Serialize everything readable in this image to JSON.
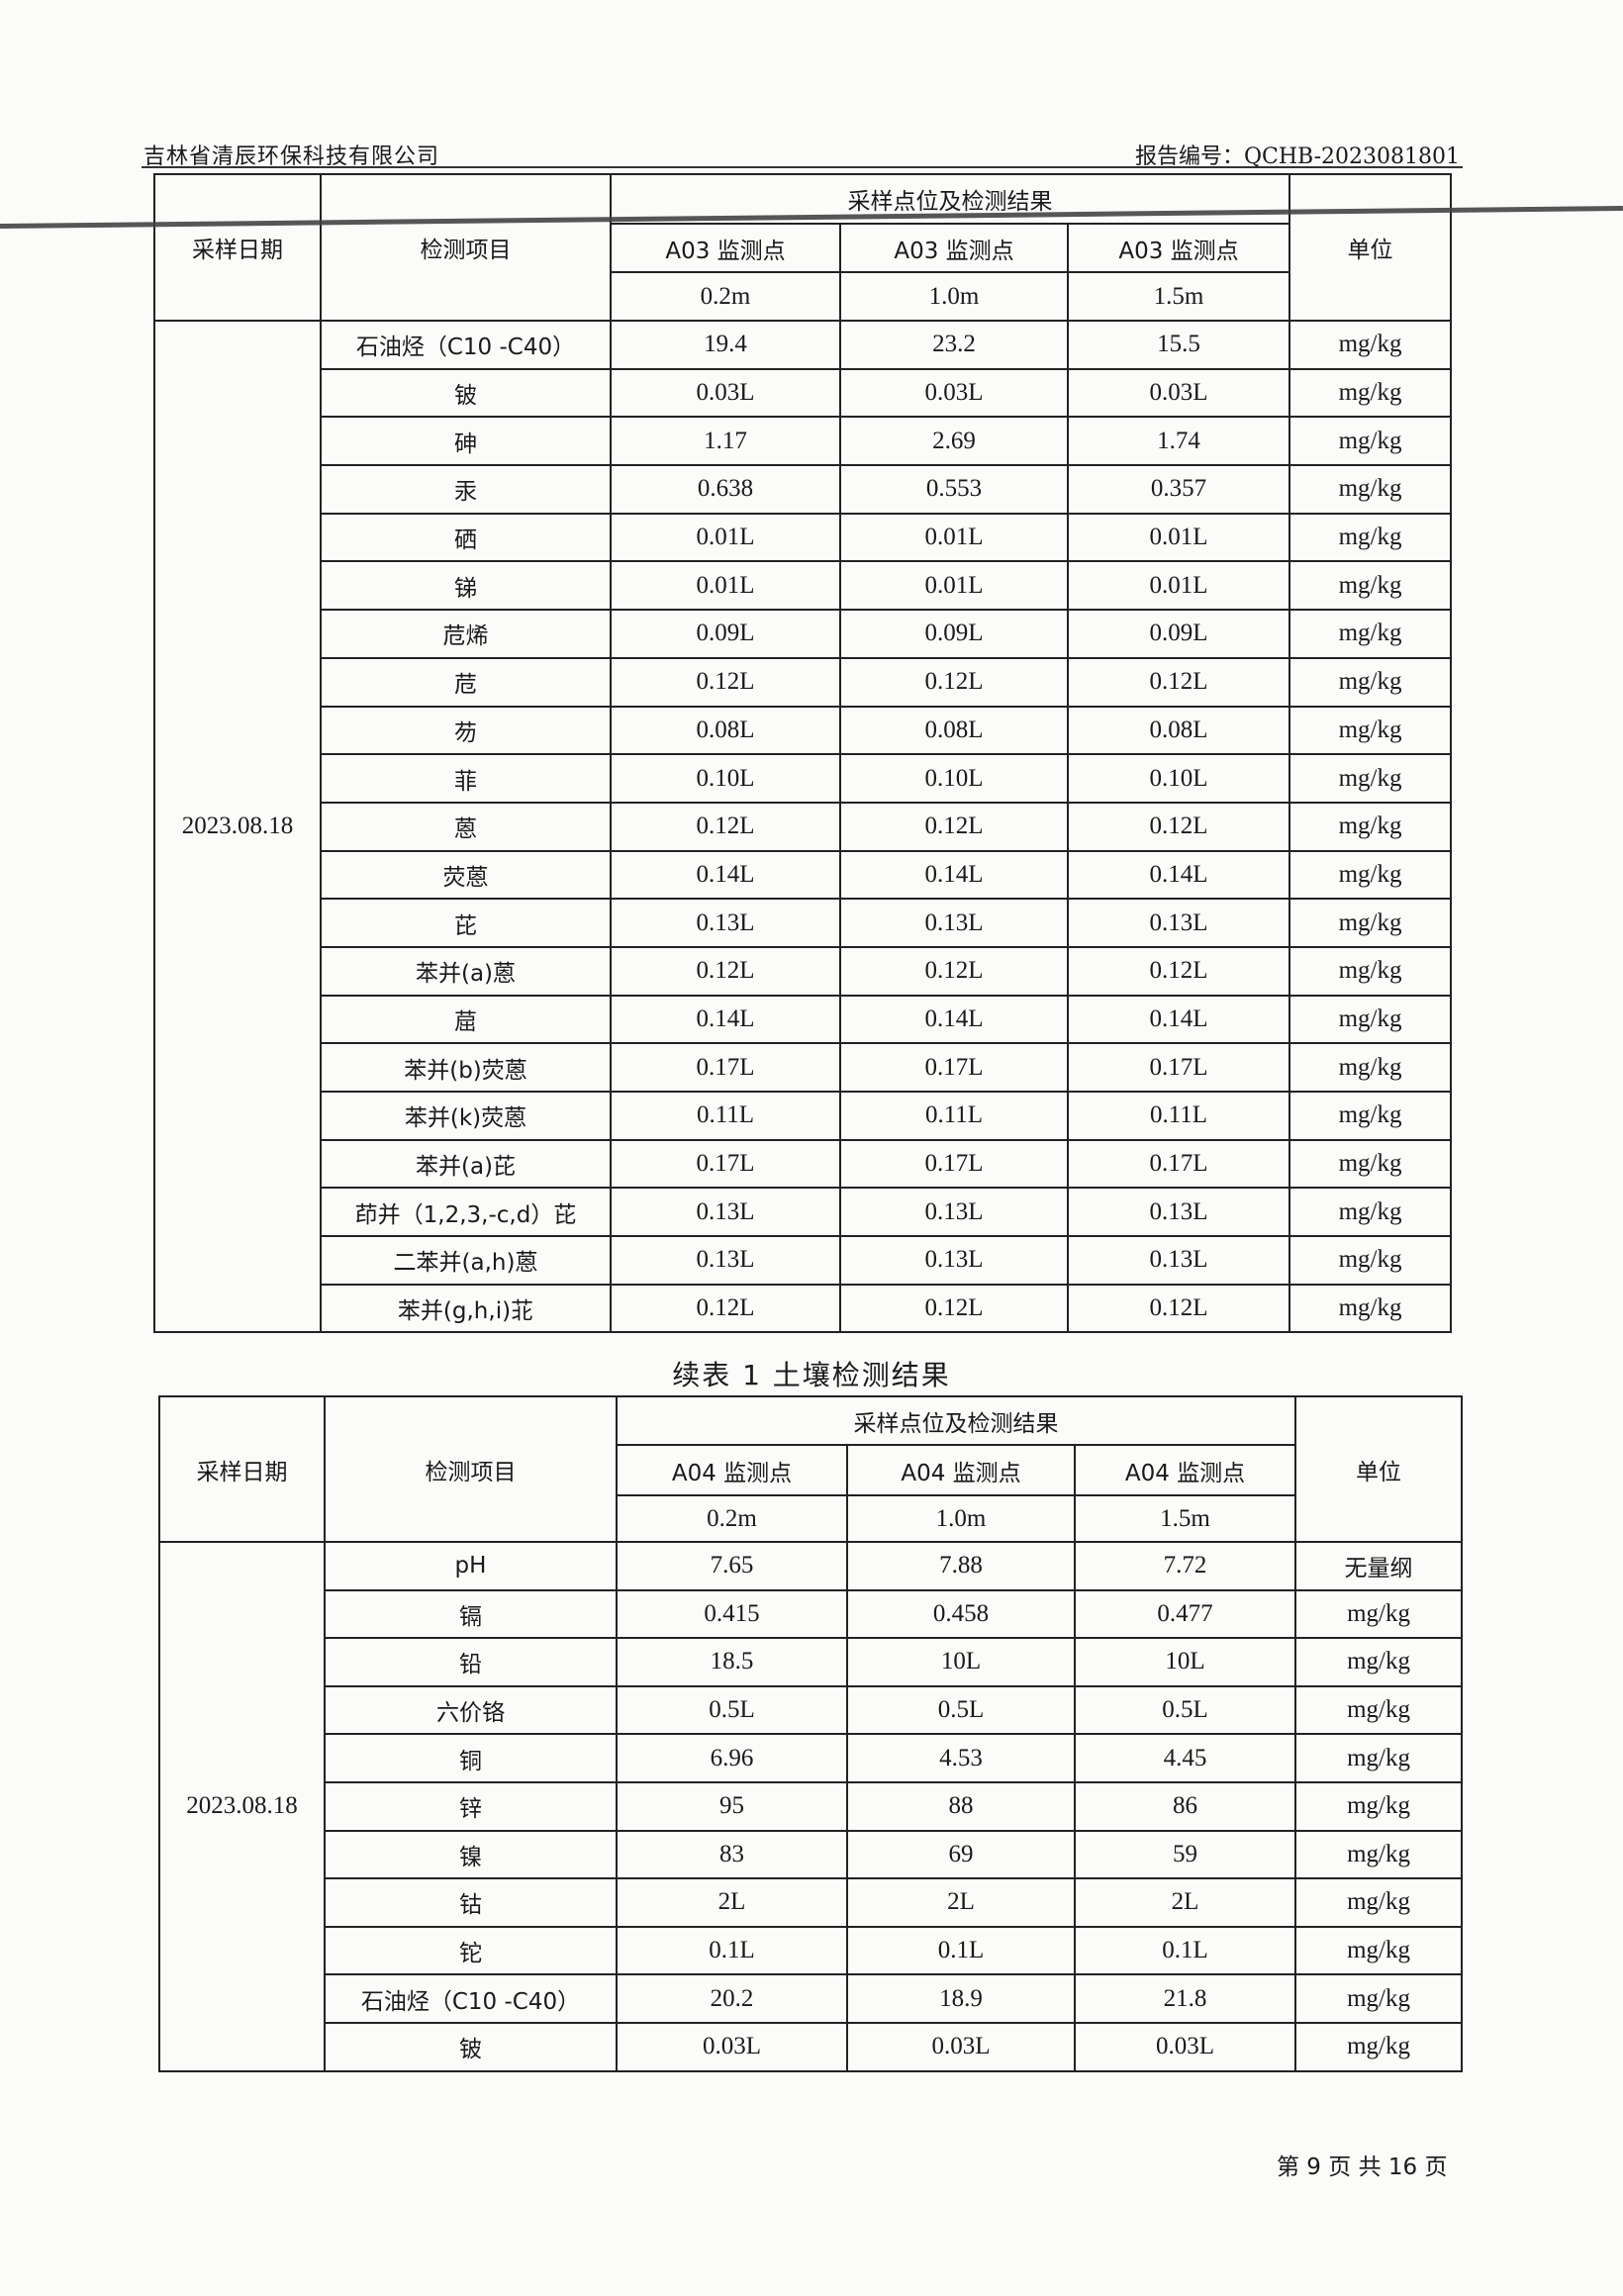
{
  "header": {
    "company": "吉林省清辰环保科技有限公司",
    "report_no": "报告编号：QCHB-2023081801"
  },
  "tables": [
    {
      "col_date": "采样日期",
      "col_item": "检测项目",
      "col_group": "采样点位及检测结果",
      "col_unit": "单位",
      "points": [
        "A03 监测点",
        "A03 监测点",
        "A03 监测点"
      ],
      "depths": [
        "0.2m",
        "1.0m",
        "1.5m"
      ],
      "date": "2023.08.18",
      "rows": [
        [
          "石油烃（C10 -C40）",
          "19.4",
          "23.2",
          "15.5",
          "mg/kg"
        ],
        [
          "铍",
          "0.03L",
          "0.03L",
          "0.03L",
          "mg/kg"
        ],
        [
          "砷",
          "1.17",
          "2.69",
          "1.74",
          "mg/kg"
        ],
        [
          "汞",
          "0.638",
          "0.553",
          "0.357",
          "mg/kg"
        ],
        [
          "硒",
          "0.01L",
          "0.01L",
          "0.01L",
          "mg/kg"
        ],
        [
          "锑",
          "0.01L",
          "0.01L",
          "0.01L",
          "mg/kg"
        ],
        [
          "苊烯",
          "0.09L",
          "0.09L",
          "0.09L",
          "mg/kg"
        ],
        [
          "苊",
          "0.12L",
          "0.12L",
          "0.12L",
          "mg/kg"
        ],
        [
          "芴",
          "0.08L",
          "0.08L",
          "0.08L",
          "mg/kg"
        ],
        [
          "菲",
          "0.10L",
          "0.10L",
          "0.10L",
          "mg/kg"
        ],
        [
          "蒽",
          "0.12L",
          "0.12L",
          "0.12L",
          "mg/kg"
        ],
        [
          "荧蒽",
          "0.14L",
          "0.14L",
          "0.14L",
          "mg/kg"
        ],
        [
          "芘",
          "0.13L",
          "0.13L",
          "0.13L",
          "mg/kg"
        ],
        [
          "苯并(a)蒽",
          "0.12L",
          "0.12L",
          "0.12L",
          "mg/kg"
        ],
        [
          "䓛",
          "0.14L",
          "0.14L",
          "0.14L",
          "mg/kg"
        ],
        [
          "苯并(b)荧蒽",
          "0.17L",
          "0.17L",
          "0.17L",
          "mg/kg"
        ],
        [
          "苯并(k)荧蒽",
          "0.11L",
          "0.11L",
          "0.11L",
          "mg/kg"
        ],
        [
          "苯并(a)芘",
          "0.17L",
          "0.17L",
          "0.17L",
          "mg/kg"
        ],
        [
          "茚并（1,2,3,-c,d）芘",
          "0.13L",
          "0.13L",
          "0.13L",
          "mg/kg"
        ],
        [
          "二苯并(a,h)蒽",
          "0.13L",
          "0.13L",
          "0.13L",
          "mg/kg"
        ],
        [
          "苯并(g,h,i)苝",
          "0.12L",
          "0.12L",
          "0.12L",
          "mg/kg"
        ]
      ]
    },
    {
      "col_date": "采样日期",
      "col_item": "检测项目",
      "col_group": "采样点位及检测结果",
      "col_unit": "单位",
      "points": [
        "A04 监测点",
        "A04 监测点",
        "A04 监测点"
      ],
      "depths": [
        "0.2m",
        "1.0m",
        "1.5m"
      ],
      "date": "2023.08.18",
      "rows": [
        [
          "pH",
          "7.65",
          "7.88",
          "7.72",
          "无量纲"
        ],
        [
          "镉",
          "0.415",
          "0.458",
          "0.477",
          "mg/kg"
        ],
        [
          "铅",
          "18.5",
          "10L",
          "10L",
          "mg/kg"
        ],
        [
          "六价铬",
          "0.5L",
          "0.5L",
          "0.5L",
          "mg/kg"
        ],
        [
          "铜",
          "6.96",
          "4.53",
          "4.45",
          "mg/kg"
        ],
        [
          "锌",
          "95",
          "88",
          "86",
          "mg/kg"
        ],
        [
          "镍",
          "83",
          "69",
          "59",
          "mg/kg"
        ],
        [
          "钴",
          "2L",
          "2L",
          "2L",
          "mg/kg"
        ],
        [
          "铊",
          "0.1L",
          "0.1L",
          "0.1L",
          "mg/kg"
        ],
        [
          "石油烃（C10 -C40）",
          "20.2",
          "18.9",
          "21.8",
          "mg/kg"
        ],
        [
          "铍",
          "0.03L",
          "0.03L",
          "0.03L",
          "mg/kg"
        ]
      ]
    }
  ],
  "caption": "续表 1 土壤检测结果",
  "footer": "第 9 页 共 16 页"
}
